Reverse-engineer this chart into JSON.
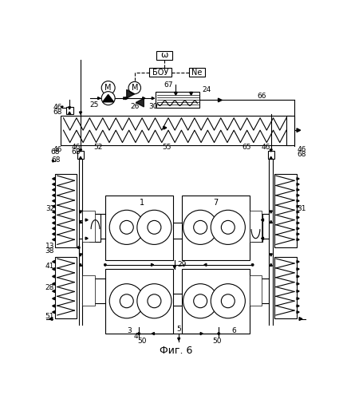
{
  "title": "Фиг. 6",
  "omega": "ω",
  "BOU": "БОУ",
  "Ne": "Ne",
  "M": "M"
}
